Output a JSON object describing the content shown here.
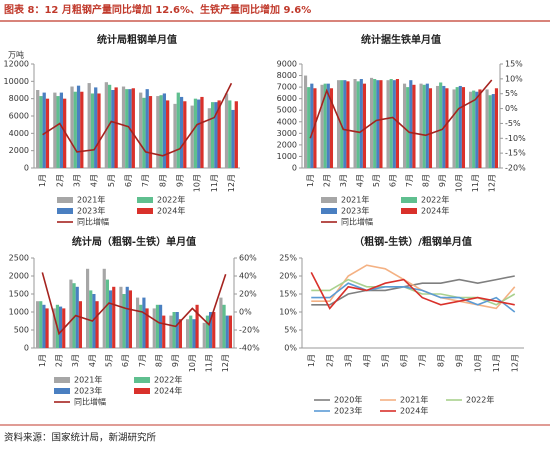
{
  "header": {
    "title": "图表 8：12 月粗钢产量同比增加 12.6%、生铁产量同比增加 9.6%"
  },
  "chart_data": [
    {
      "type": "bar",
      "title": "统计局粗钢单月值",
      "ylabel": "万吨",
      "categories": [
        "1月",
        "2月",
        "3月",
        "4月",
        "5月",
        "6月",
        "7月",
        "8月",
        "9月",
        "10月",
        "11月",
        "12月"
      ],
      "ylim": [
        0,
        12000
      ],
      "yticks": [
        0,
        2000,
        4000,
        6000,
        8000,
        10000,
        12000
      ],
      "y2lim": [
        -20,
        20
      ],
      "series": [
        {
          "name": "2021年",
          "type": "bar",
          "color": "#a6a6a6",
          "values": [
            9000,
            8700,
            9400,
            9800,
            9900,
            9400,
            8700,
            8300,
            7400,
            7200,
            6900,
            8600
          ]
        },
        {
          "name": "2022年",
          "type": "bar",
          "color": "#5fbf8f",
          "values": [
            8300,
            8300,
            8800,
            8600,
            9600,
            9100,
            8100,
            8400,
            8700,
            8000,
            7600,
            7800
          ]
        },
        {
          "name": "2023年",
          "type": "bar",
          "color": "#4a7fc1",
          "values": [
            8700,
            8700,
            9500,
            9300,
            9000,
            9100,
            9100,
            8600,
            8200,
            7900,
            7600,
            6700
          ]
        },
        {
          "name": "2024年",
          "type": "bar",
          "color": "#d9312b",
          "values": [
            8000,
            8000,
            8800,
            8600,
            9300,
            9200,
            8300,
            7800,
            7700,
            8200,
            7800,
            7700
          ]
        },
        {
          "name": "同比增幅",
          "type": "line",
          "axis": "y2",
          "color": "#a5231f",
          "values": [
            -7.2,
            -2.9,
            -13.8,
            -13,
            -2.1,
            -4.1,
            -13.8,
            -15.3,
            -12.6,
            -3.3,
            -0.6,
            12.6
          ]
        }
      ]
    },
    {
      "type": "bar",
      "title": "统计据生铁单月值",
      "categories": [
        "1月",
        "2月",
        "3月",
        "4月",
        "5月",
        "6月",
        "7月",
        "8月",
        "9月",
        "10月",
        "11月",
        "12月"
      ],
      "ylim": [
        0,
        9000
      ],
      "yticks": [
        0,
        1000,
        2000,
        3000,
        4000,
        5000,
        6000,
        7000,
        8000,
        9000
      ],
      "y2lim": [
        -20,
        15
      ],
      "y2ticks": [
        {
          "value": -20,
          "label": "-20%"
        },
        {
          "value": -15,
          "label": "-15%"
        },
        {
          "value": -10,
          "label": "-10%"
        },
        {
          "value": -5,
          "label": "-5%"
        },
        {
          "value": 0,
          "label": "0%"
        },
        {
          "value": 5,
          "label": "5%"
        },
        {
          "value": 10,
          "label": "10%"
        },
        {
          "value": 15,
          "label": "15%"
        }
      ],
      "series": [
        {
          "name": "2021年",
          "type": "bar",
          "color": "#a6a6a6",
          "values": [
            8000,
            7200,
            7600,
            7700,
            7800,
            7600,
            7300,
            7300,
            7100,
            6800,
            6600,
            6800
          ]
        },
        {
          "name": "2022年",
          "type": "bar",
          "color": "#5fbf8f",
          "values": [
            7000,
            7300,
            7600,
            7500,
            7700,
            7700,
            7000,
            7200,
            7400,
            7000,
            6700,
            6300
          ]
        },
        {
          "name": "2023年",
          "type": "bar",
          "color": "#4a7fc1",
          "values": [
            7300,
            7300,
            7600,
            7700,
            7600,
            7600,
            7600,
            7300,
            7100,
            7100,
            6600,
            6400
          ]
        },
        {
          "name": "2024年",
          "type": "bar",
          "color": "#d9312b",
          "values": [
            6900,
            6900,
            7500,
            7300,
            7600,
            7700,
            7200,
            6900,
            6900,
            7000,
            6800,
            6900
          ]
        },
        {
          "name": "同比增幅",
          "type": "line",
          "axis": "y2",
          "color": "#a5231f",
          "values": [
            -10,
            6,
            -7,
            -8,
            -4,
            -3,
            -8,
            -9,
            -7,
            0,
            3,
            9.6
          ]
        }
      ]
    },
    {
      "type": "bar",
      "title": "统计局（粗钢-生铁）单月值",
      "categories": [
        "1月",
        "2月",
        "3月",
        "4月",
        "5月",
        "6月",
        "7月",
        "8月",
        "9月",
        "10月",
        "11月",
        "12月"
      ],
      "ylim": [
        0,
        2500
      ],
      "yticks": [
        0,
        500,
        1000,
        1500,
        2000,
        2500
      ],
      "y2lim": [
        -40,
        60
      ],
      "y2ticks": [
        {
          "value": -40,
          "label": "-40%"
        },
        {
          "value": -20,
          "label": "-20%"
        },
        {
          "value": 0,
          "label": "0%"
        },
        {
          "value": 20,
          "label": "20%"
        },
        {
          "value": 40,
          "label": "40%"
        },
        {
          "value": 60,
          "label": "60%"
        }
      ],
      "series": [
        {
          "name": "2021年",
          "type": "bar",
          "color": "#a6a6a6",
          "values": [
            1300,
            1100,
            1900,
            2200,
            2200,
            1700,
            1400,
            1100,
            900,
            800,
            700,
            1400
          ]
        },
        {
          "name": "2022年",
          "type": "bar",
          "color": "#5fbf8f",
          "values": [
            1300,
            1200,
            1800,
            1600,
            1900,
            1500,
            1200,
            1200,
            1000,
            900,
            900,
            1200
          ]
        },
        {
          "name": "2023年",
          "type": "bar",
          "color": "#4a7fc1",
          "values": [
            1200,
            1150,
            1700,
            1500,
            1600,
            1700,
            1400,
            1200,
            1000,
            800,
            1000,
            900
          ]
        },
        {
          "name": "2024年",
          "type": "bar",
          "color": "#d9312b",
          "values": [
            1100,
            1100,
            1300,
            1300,
            1700,
            1600,
            1100,
            900,
            800,
            1200,
            1000,
            900
          ]
        },
        {
          "name": "同比增幅",
          "type": "line",
          "axis": "y2",
          "color": "#a5231f",
          "values": [
            44,
            -24,
            -4,
            -10,
            10,
            4,
            0,
            -12,
            -16,
            4,
            -14,
            42
          ]
        }
      ]
    },
    {
      "type": "line",
      "title": "（粗钢-生铁）/粗钢单月值",
      "categories": [
        "1月",
        "2月",
        "3月",
        "4月",
        "5月",
        "6月",
        "7月",
        "8月",
        "9月",
        "10月",
        "11月",
        "12月"
      ],
      "ylim": [
        0,
        25
      ],
      "yticks": [
        {
          "value": 0,
          "label": "0%"
        },
        {
          "value": 5,
          "label": "5%"
        },
        {
          "value": 10,
          "label": "10%"
        },
        {
          "value": 15,
          "label": "15%"
        },
        {
          "value": 20,
          "label": "20%"
        },
        {
          "value": 25,
          "label": "25%"
        }
      ],
      "series": [
        {
          "name": "2020年",
          "type": "line",
          "color": "#7f7f7f",
          "values": [
            12,
            12,
            15,
            16,
            16,
            17,
            18,
            18,
            19,
            18,
            19,
            20
          ]
        },
        {
          "name": "2021年",
          "type": "line",
          "color": "#f4b183",
          "values": [
            13,
            13,
            20,
            23,
            22,
            19,
            16,
            14,
            13,
            12,
            11,
            17
          ]
        },
        {
          "name": "2022年",
          "type": "line",
          "color": "#a9d18e",
          "values": [
            16,
            16,
            19,
            17,
            17,
            17,
            15,
            15,
            14,
            14,
            12,
            15
          ]
        },
        {
          "name": "2023年",
          "type": "line",
          "color": "#5b9bd5",
          "values": [
            14,
            14,
            18,
            16,
            17,
            17,
            16,
            14,
            14,
            12,
            14,
            10
          ]
        },
        {
          "name": "2024年",
          "type": "line",
          "color": "#d9312b",
          "values": [
            21,
            11,
            17,
            16,
            18,
            19,
            14,
            12,
            13,
            14,
            13,
            12
          ]
        }
      ]
    }
  ],
  "footer": {
    "source": "资料来源：国家统计局，新湖研究所"
  }
}
